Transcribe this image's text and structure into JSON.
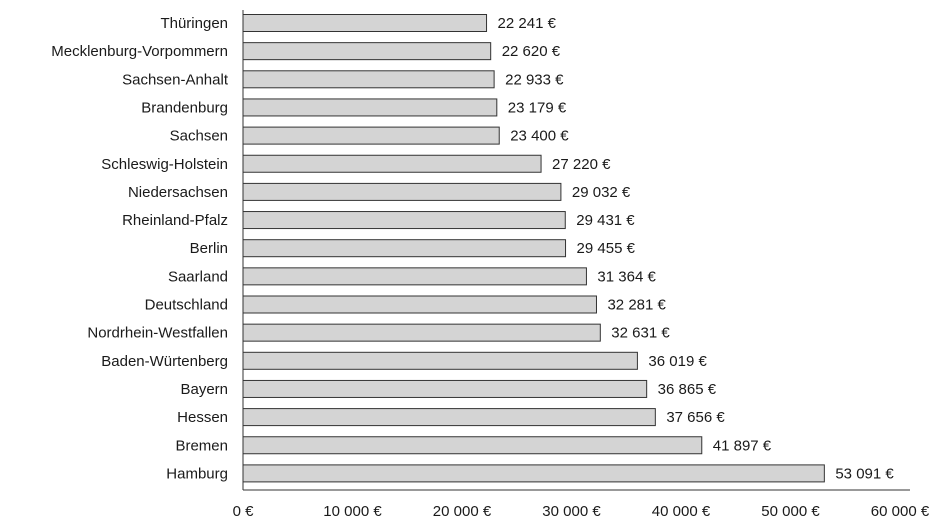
{
  "chart_data": {
    "type": "bar",
    "orientation": "horizontal",
    "categories": [
      "Thüringen",
      "Mecklenburg-Vorpommern",
      "Sachsen-Anhalt",
      "Brandenburg",
      "Sachsen",
      "Schleswig-Holstein",
      "Niedersachsen",
      "Rheinland-Pfalz",
      "Berlin",
      "Saarland",
      "Deutschland",
      "Nordrhein-Westfallen",
      "Baden-Würtenberg",
      "Bayern",
      "Hessen",
      "Bremen",
      "Hamburg"
    ],
    "values": [
      22241,
      22620,
      22933,
      23179,
      23400,
      27220,
      29032,
      29431,
      29455,
      31364,
      32281,
      32631,
      36019,
      36865,
      37656,
      41897,
      53091
    ],
    "value_labels": [
      "22 241 €",
      "22 620 €",
      "22 933 €",
      "23 179 €",
      "23 400 €",
      "27 220 €",
      "29 032 €",
      "29 431 €",
      "29 455 €",
      "31 364 €",
      "32 281 €",
      "32 631 €",
      "36 019 €",
      "36 865 €",
      "37 656 €",
      "41 897 €",
      "53 091 €"
    ],
    "x_ticks": [
      "0 €",
      "10 000 €",
      "20 000 €",
      "30 000 €",
      "40 000 €",
      "50 000 €",
      "60 000 €"
    ],
    "xlim": [
      0,
      60000
    ],
    "title": "",
    "xlabel": "",
    "ylabel": "",
    "grid": false,
    "legend": "none",
    "bar_color": "#d4d4d4",
    "bar_edge_color": "#333333"
  }
}
